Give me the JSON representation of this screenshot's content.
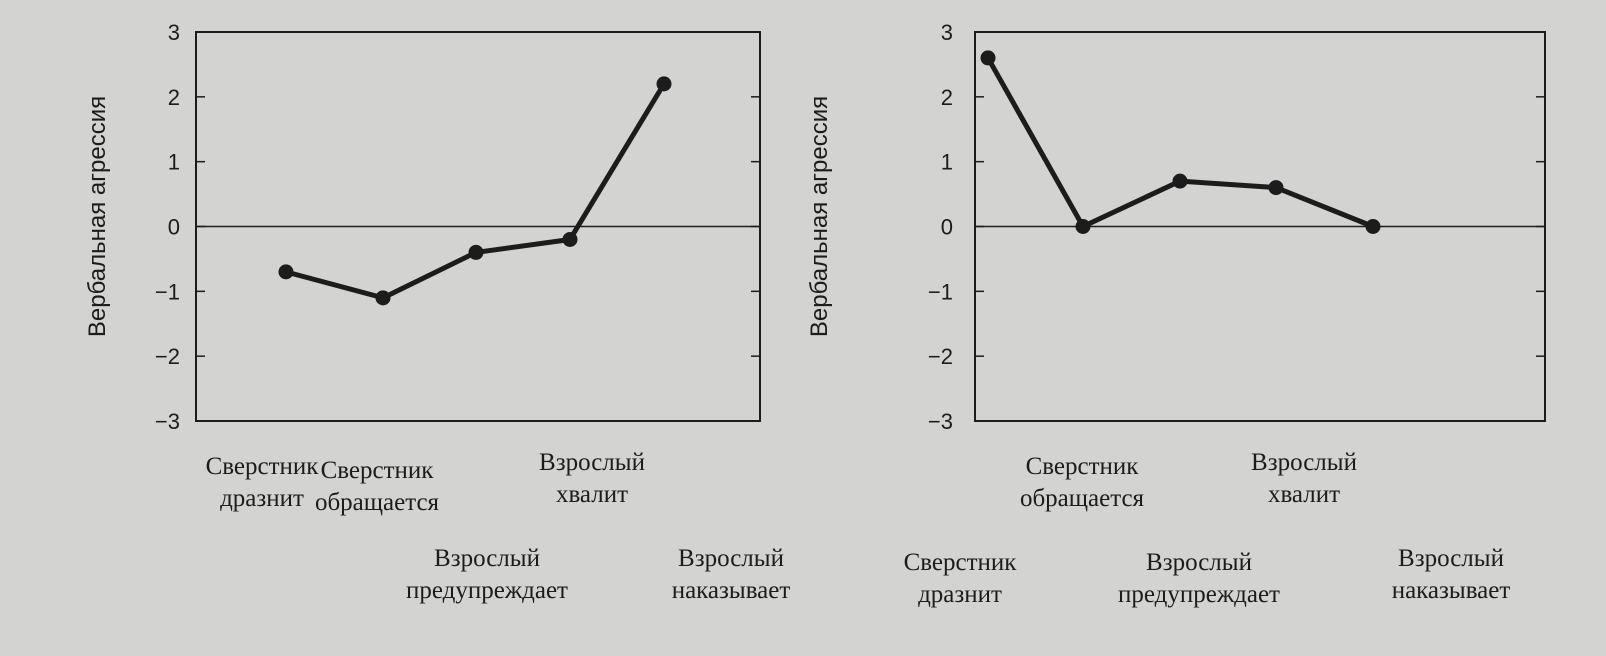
{
  "chart_data": [
    {
      "type": "line",
      "ylabel": "Вербальная агрессия",
      "ylim": [
        -3,
        3
      ],
      "yticks": [
        "3",
        "2",
        "1",
        "0",
        "−1",
        "−2",
        "−3"
      ],
      "categories": [
        [
          "Сверстник",
          "дразнит"
        ],
        [
          "Сверстник",
          "обращается"
        ],
        [
          "Взрослый",
          "предупреждает"
        ],
        [
          "Взрослый",
          "хвалит"
        ],
        [
          "Взрослый",
          "наказывает"
        ]
      ],
      "values": [
        -0.7,
        -1.1,
        -0.4,
        -0.2,
        2.2
      ],
      "grid": false
    },
    {
      "type": "line",
      "ylabel": "Вербальная агрессия",
      "ylim": [
        -3,
        3
      ],
      "yticks": [
        "3",
        "2",
        "1",
        "0",
        "−1",
        "−2",
        "−3"
      ],
      "categories": [
        [
          "Сверстник",
          "дразнит"
        ],
        [
          "Сверстник",
          "обращается"
        ],
        [
          "Взрослый",
          "предупреждает"
        ],
        [
          "Взрослый",
          "хвалит"
        ],
        [
          "Взрослый",
          "наказывает"
        ]
      ],
      "values": [
        2.6,
        0.0,
        0.7,
        0.6,
        0.0
      ],
      "grid": false
    }
  ]
}
